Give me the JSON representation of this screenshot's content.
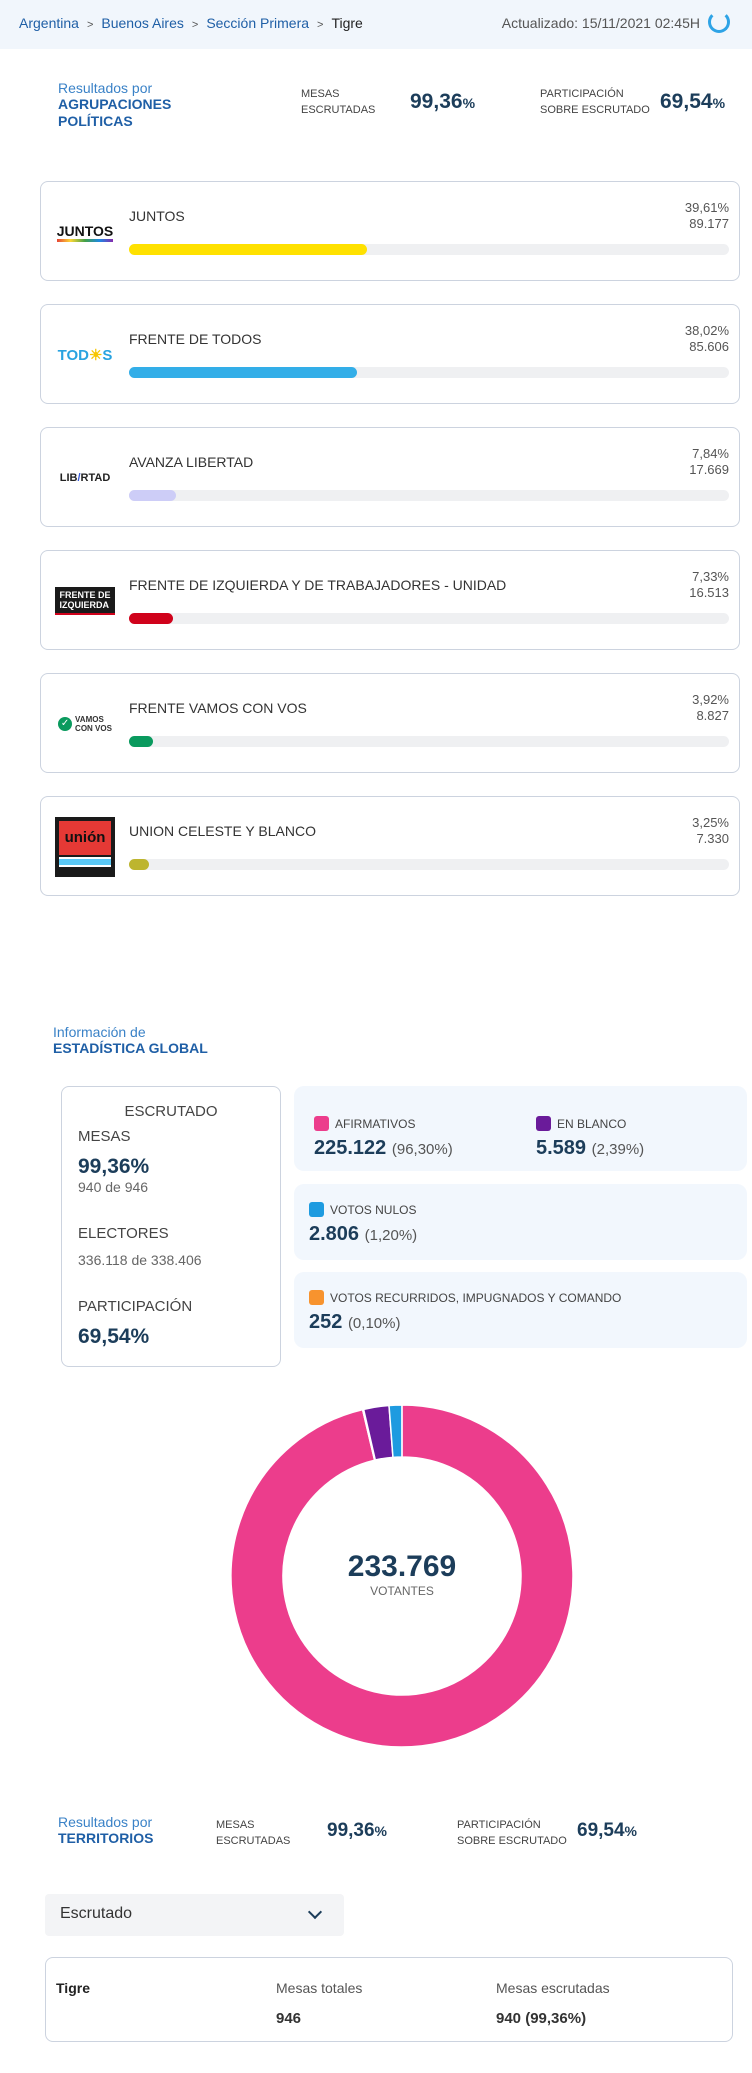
{
  "breadcrumb": [
    "Argentina",
    "Buenos Aires",
    "Sección Primera",
    "Tigre"
  ],
  "updated": "Actualizado: 15/11/2021 02:45H",
  "parties_section": {
    "title_1": "Resultados por",
    "title_2": "AGRUPACIONES",
    "title_3": "POLÍTICAS",
    "mesas_label_1": "MESAS",
    "mesas_label_2": "ESCRUTADAS",
    "mesas_value": "99,36",
    "participacion_label_1": "PARTICIPACIÓN",
    "participacion_label_2": "SOBRE ESCRUTADO",
    "participacion_value": "69,54",
    "pct_sign": "%"
  },
  "parties": [
    {
      "name": "JUNTOS",
      "pct": "39,61%",
      "votes": "89.177",
      "share": 39.61,
      "color": "#ffe100",
      "logo": "JUNTOS"
    },
    {
      "name": "FRENTE DE TODOS",
      "pct": "38,02%",
      "votes": "85.606",
      "share": 38.02,
      "color": "#33aee8",
      "logo": "TODOS"
    },
    {
      "name": "AVANZA LIBERTAD",
      "pct": "7,84%",
      "votes": "17.669",
      "share": 7.84,
      "color": "#cdcdf7",
      "logo": "LIBERTAD"
    },
    {
      "name": "FRENTE DE IZQUIERDA Y DE TRABAJADORES - UNIDAD",
      "pct": "7,33%",
      "votes": "16.513",
      "share": 7.33,
      "color": "#d0021b",
      "logo": "FRENTE DE IZQUIERDA"
    },
    {
      "name": "FRENTE VAMOS CON VOS",
      "pct": "3,92%",
      "votes": "8.827",
      "share": 3.92,
      "color": "#0a9a5e",
      "logo": "VAMOS CON VOS"
    },
    {
      "name": "UNION CELESTE Y BLANCO",
      "pct": "3,25%",
      "votes": "7.330",
      "share": 3.25,
      "color": "#bdb52f",
      "logo": "unión"
    }
  ],
  "stats_section": {
    "title_1": "Información de",
    "title_2": "ESTADÍSTICA GLOBAL"
  },
  "escrutado": {
    "title": "ESCRUTADO",
    "mesas_label": "MESAS",
    "mesas_value": "99,36%",
    "mesas_detail": "940 de 946",
    "electores_label": "ELECTORES",
    "electores_detail": "336.118 de 338.406",
    "participacion_label": "PARTICIPACIÓN",
    "participacion_value": "69,54%"
  },
  "votes": [
    {
      "label": "AFIRMATIVOS",
      "value": "225.122",
      "pct": "(96,30%)",
      "share": 96.3,
      "color": "#ec3d8c"
    },
    {
      "label": "EN BLANCO",
      "value": "5.589",
      "pct": "(2,39%)",
      "share": 2.39,
      "color": "#6a1b9a"
    },
    {
      "label": "VOTOS NULOS",
      "value": "2.806",
      "pct": "(1,20%)",
      "share": 1.2,
      "color": "#1e9be0"
    },
    {
      "label": "VOTOS RECURRIDOS, IMPUGNADOS Y COMANDO",
      "value": "252",
      "pct": "(0,10%)",
      "share": 0.1,
      "color": "#f7932e"
    }
  ],
  "donut": {
    "total": "233.769",
    "label": "VOTANTES"
  },
  "territories_section": {
    "title_1": "Resultados por",
    "title_2": "TERRITORIOS",
    "mesas_label_1": "MESAS",
    "mesas_label_2": "ESCRUTADAS",
    "mesas_value": "99,36",
    "participacion_label_1": "PARTICIPACIÓN",
    "participacion_label_2": "SOBRE ESCRUTADO",
    "participacion_value": "69,54",
    "pct_sign": "%"
  },
  "dropdown": {
    "selected": "Escrutado"
  },
  "territory_table": {
    "name": "Tigre",
    "col1_label": "Mesas totales",
    "col1_value": "946",
    "col2_label": "Mesas escrutadas",
    "col2_value": "940 (99,36%)"
  }
}
